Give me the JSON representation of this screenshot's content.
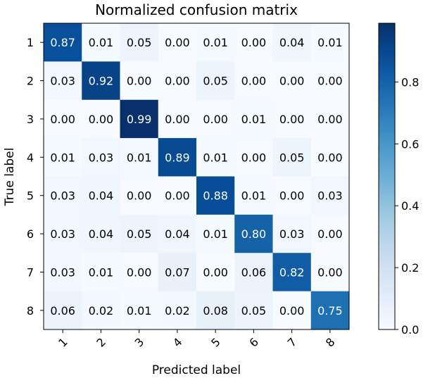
{
  "chart_data": {
    "type": "heatmap",
    "title": "Normalized confusion matrix",
    "xlabel": "Predicted label",
    "ylabel": "True label",
    "x_categories": [
      "1",
      "2",
      "3",
      "4",
      "5",
      "6",
      "7",
      "8"
    ],
    "y_categories": [
      "1",
      "2",
      "3",
      "4",
      "5",
      "6",
      "7",
      "8"
    ],
    "values": [
      [
        0.87,
        0.01,
        0.05,
        0.0,
        0.01,
        0.0,
        0.04,
        0.01
      ],
      [
        0.03,
        0.92,
        0.0,
        0.0,
        0.05,
        0.0,
        0.0,
        0.0
      ],
      [
        0.0,
        0.0,
        0.99,
        0.0,
        0.0,
        0.01,
        0.0,
        0.0
      ],
      [
        0.01,
        0.03,
        0.01,
        0.89,
        0.01,
        0.0,
        0.05,
        0.0
      ],
      [
        0.03,
        0.04,
        0.0,
        0.0,
        0.88,
        0.01,
        0.0,
        0.03
      ],
      [
        0.03,
        0.04,
        0.05,
        0.04,
        0.01,
        0.8,
        0.03,
        0.0
      ],
      [
        0.03,
        0.01,
        0.0,
        0.07,
        0.0,
        0.06,
        0.82,
        0.0
      ],
      [
        0.06,
        0.02,
        0.01,
        0.02,
        0.08,
        0.05,
        0.0,
        0.75
      ]
    ],
    "colormap": "Blues",
    "colorbar": {
      "range": [
        0.0,
        0.99
      ],
      "ticks": [
        0.0,
        0.2,
        0.4,
        0.6,
        0.8
      ],
      "tick_labels": [
        "0.0",
        "0.2",
        "0.4",
        "0.6",
        "0.8"
      ]
    },
    "x_tick_rotation": "45deg",
    "grid": false
  }
}
